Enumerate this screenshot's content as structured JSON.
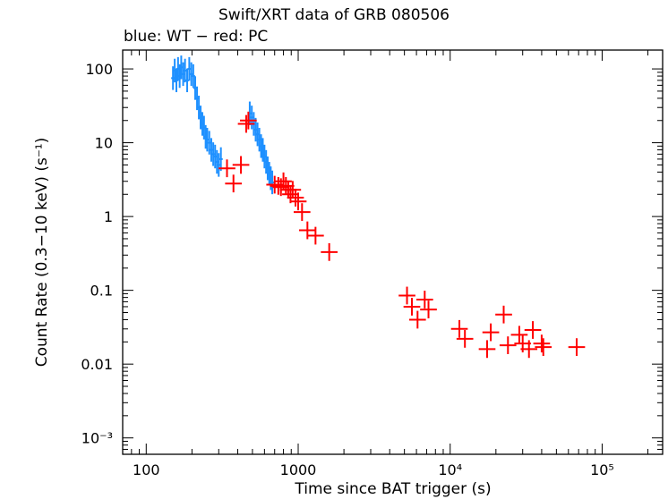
{
  "chart_data": {
    "type": "scatter",
    "title": "Swift/XRT data of GRB 080506",
    "subtitle": "blue: WT − red: PC",
    "xlabel": "Time since BAT trigger (s)",
    "ylabel": "Count Rate (0.3−10 keV) (s⁻¹)",
    "xscale": "log",
    "yscale": "log",
    "xlim": [
      70,
      250000
    ],
    "ylim": [
      0.0006,
      180
    ],
    "x_ticks": [
      {
        "value": 100,
        "label": "100"
      },
      {
        "value": 1000,
        "label": "1000"
      },
      {
        "value": 10000,
        "label": "10⁴"
      },
      {
        "value": 100000,
        "label": "10⁵"
      }
    ],
    "y_ticks": [
      {
        "value": 100,
        "label": "100"
      },
      {
        "value": 10,
        "label": "10"
      },
      {
        "value": 1,
        "label": "1"
      },
      {
        "value": 0.1,
        "label": "0.1"
      },
      {
        "value": 0.01,
        "label": "0.01"
      },
      {
        "value": 0.001,
        "label": "10⁻³"
      }
    ],
    "grid": false,
    "series": [
      {
        "name": "WT",
        "color": "#1e90ff",
        "points": [
          {
            "x": 150,
            "y": 75
          },
          {
            "x": 154,
            "y": 95
          },
          {
            "x": 158,
            "y": 70
          },
          {
            "x": 162,
            "y": 100
          },
          {
            "x": 166,
            "y": 80
          },
          {
            "x": 170,
            "y": 105
          },
          {
            "x": 175,
            "y": 85
          },
          {
            "x": 180,
            "y": 95
          },
          {
            "x": 186,
            "y": 70
          },
          {
            "x": 192,
            "y": 100
          },
          {
            "x": 198,
            "y": 85
          },
          {
            "x": 204,
            "y": 80
          },
          {
            "x": 210,
            "y": 55
          },
          {
            "x": 216,
            "y": 40
          },
          {
            "x": 222,
            "y": 30
          },
          {
            "x": 228,
            "y": 22
          },
          {
            "x": 234,
            "y": 18
          },
          {
            "x": 240,
            "y": 16
          },
          {
            "x": 246,
            "y": 12
          },
          {
            "x": 252,
            "y": 11
          },
          {
            "x": 260,
            "y": 10
          },
          {
            "x": 268,
            "y": 8
          },
          {
            "x": 276,
            "y": 7
          },
          {
            "x": 284,
            "y": 6.5
          },
          {
            "x": 292,
            "y": 5.5
          },
          {
            "x": 300,
            "y": 5
          },
          {
            "x": 310,
            "y": 6
          },
          {
            "x": 480,
            "y": 25
          },
          {
            "x": 495,
            "y": 22
          },
          {
            "x": 510,
            "y": 18
          },
          {
            "x": 525,
            "y": 15
          },
          {
            "x": 540,
            "y": 13
          },
          {
            "x": 555,
            "y": 11
          },
          {
            "x": 570,
            "y": 9
          },
          {
            "x": 585,
            "y": 8
          },
          {
            "x": 600,
            "y": 6.5
          },
          {
            "x": 615,
            "y": 5.5
          },
          {
            "x": 630,
            "y": 4.5
          },
          {
            "x": 645,
            "y": 3.8
          },
          {
            "x": 660,
            "y": 3.3
          },
          {
            "x": 675,
            "y": 2.9
          }
        ]
      },
      {
        "name": "PC",
        "color": "#ff0000",
        "points": [
          {
            "x": 340,
            "y": 4.5
          },
          {
            "x": 375,
            "y": 2.8
          },
          {
            "x": 420,
            "y": 5
          },
          {
            "x": 455,
            "y": 18
          },
          {
            "x": 470,
            "y": 20
          },
          {
            "x": 700,
            "y": 2.7
          },
          {
            "x": 740,
            "y": 2.6
          },
          {
            "x": 770,
            "y": 2.5
          },
          {
            "x": 800,
            "y": 3
          },
          {
            "x": 830,
            "y": 2.6
          },
          {
            "x": 860,
            "y": 2.3
          },
          {
            "x": 890,
            "y": 2
          },
          {
            "x": 920,
            "y": 2.3
          },
          {
            "x": 960,
            "y": 1.8
          },
          {
            "x": 1000,
            "y": 1.6
          },
          {
            "x": 1060,
            "y": 1.15
          },
          {
            "x": 1150,
            "y": 0.65
          },
          {
            "x": 1300,
            "y": 0.55
          },
          {
            "x": 1600,
            "y": 0.33
          },
          {
            "x": 5200,
            "y": 0.085
          },
          {
            "x": 5600,
            "y": 0.06
          },
          {
            "x": 6100,
            "y": 0.04
          },
          {
            "x": 6800,
            "y": 0.075
          },
          {
            "x": 7200,
            "y": 0.055
          },
          {
            "x": 11500,
            "y": 0.03
          },
          {
            "x": 12500,
            "y": 0.022
          },
          {
            "x": 17500,
            "y": 0.016
          },
          {
            "x": 18500,
            "y": 0.027
          },
          {
            "x": 22500,
            "y": 0.047
          },
          {
            "x": 24000,
            "y": 0.018
          },
          {
            "x": 28500,
            "y": 0.025
          },
          {
            "x": 30000,
            "y": 0.019
          },
          {
            "x": 33000,
            "y": 0.016
          },
          {
            "x": 35000,
            "y": 0.029
          },
          {
            "x": 40000,
            "y": 0.019
          },
          {
            "x": 41000,
            "y": 0.017
          },
          {
            "x": 68000,
            "y": 0.017
          }
        ]
      }
    ]
  }
}
